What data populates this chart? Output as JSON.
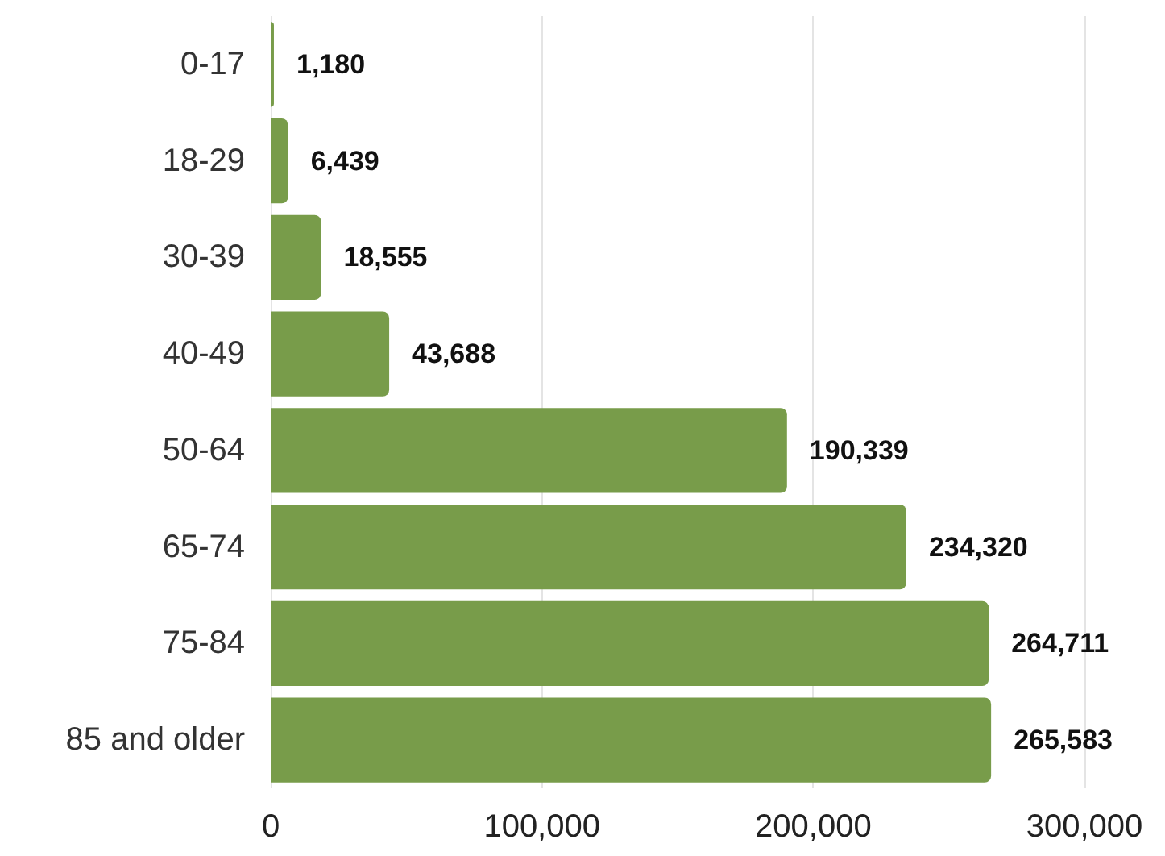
{
  "chart_data": {
    "type": "bar",
    "orientation": "horizontal",
    "categories": [
      "0-17",
      "18-29",
      "30-39",
      "40-49",
      "50-64",
      "65-74",
      "75-84",
      "85 and older"
    ],
    "values": [
      1180,
      6439,
      18555,
      43688,
      190339,
      234320,
      264711,
      265583
    ],
    "value_labels": [
      "1,180",
      "6,439",
      "18,555",
      "43,688",
      "190,339",
      "234,320",
      "264,711",
      "265,583"
    ],
    "color": "#789c4a",
    "xlim": [
      0,
      300000
    ],
    "xticks": [
      0,
      {
        "value": 100000,
        "label": "100,000"
      },
      {
        "value": 200000,
        "label": "200,000"
      },
      {
        "value": 300000,
        "label": "300,000"
      }
    ],
    "grid": "x"
  }
}
